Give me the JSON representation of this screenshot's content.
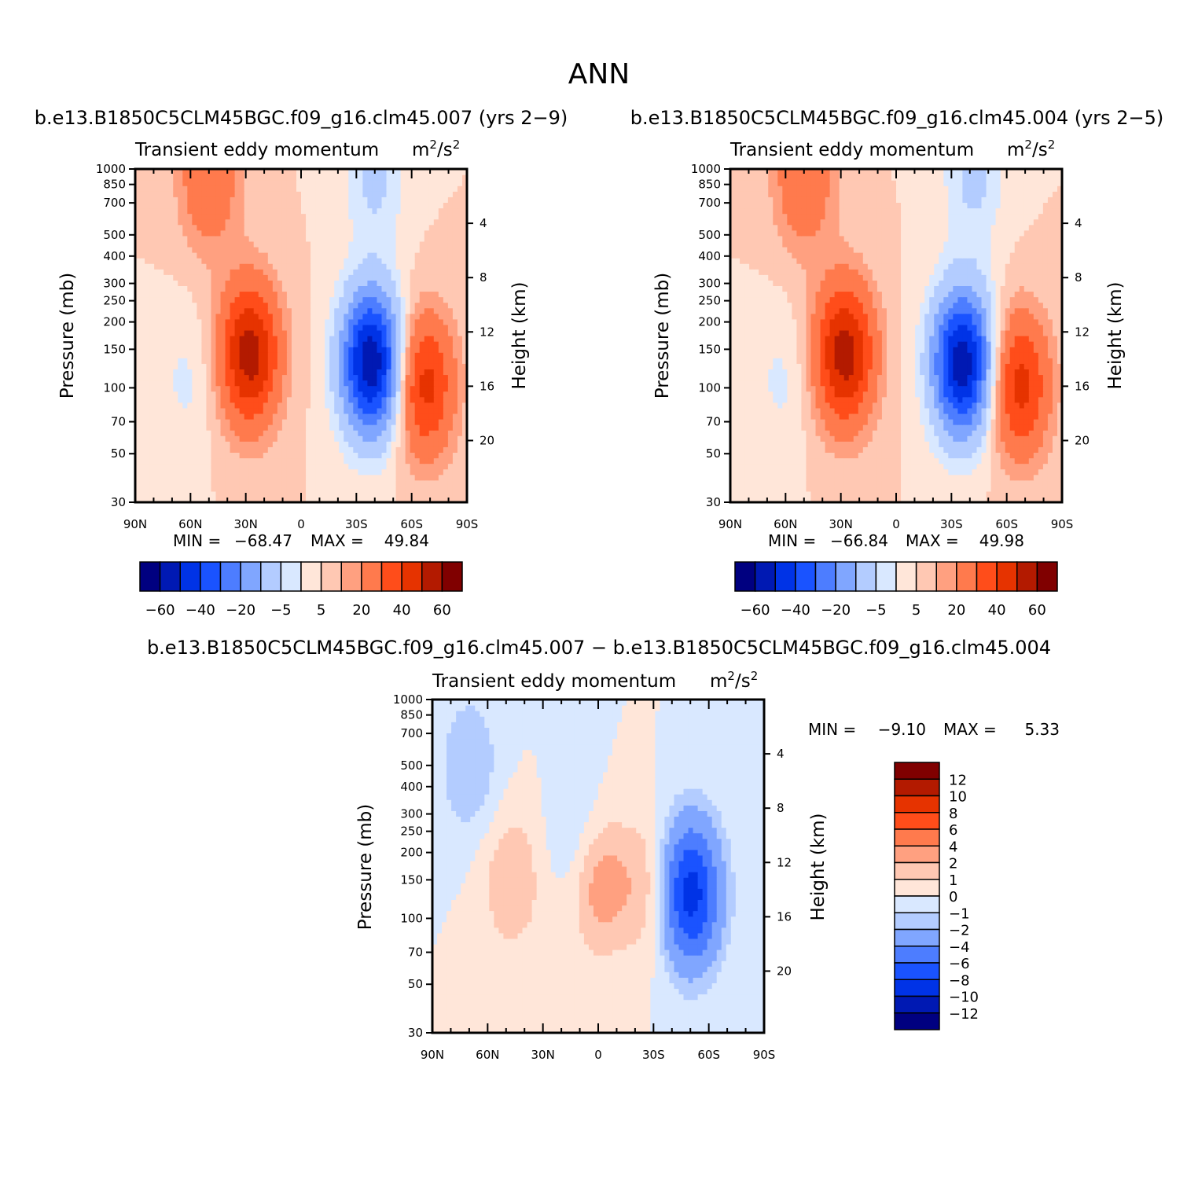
{
  "title": "ANN",
  "colors": {
    "full": [
      "#000080",
      "#0019b3",
      "#0033e6",
      "#1a53ff",
      "#4d7dff",
      "#80a6ff",
      "#b3ccff",
      "#d9e8ff",
      "#ffe6d9",
      "#ffc8b3",
      "#ffa080",
      "#ff7a4d",
      "#ff4d1a",
      "#e63300",
      "#b31a00",
      "#800000"
    ],
    "diff": [
      "#000080",
      "#0019b3",
      "#0033e6",
      "#1a53ff",
      "#4d7dff",
      "#80a6ff",
      "#b3ccff",
      "#d9e8ff",
      "#ffe6d9",
      "#ffc8b3",
      "#ffa080",
      "#ff7a4d",
      "#ff4d1a",
      "#e63300",
      "#b31a00",
      "#800000"
    ]
  },
  "panels": [
    {
      "case": "b.e13.B1850C5CLM45BGC.f09_g16.clm45.007 (yrs 2−9)",
      "title": "Transient eddy momentum",
      "units_base": "m",
      "units_sup1": "2",
      "units_mid": "/s",
      "units_sup2": "2",
      "ylabel": "Pressure (mb)",
      "y2label": "Height (km)",
      "min_label": "MIN =",
      "min_value": "−68.47",
      "max_label": "MAX =",
      "max_value": "49.84"
    },
    {
      "case": "b.e13.B1850C5CLM45BGC.f09_g16.clm45.004 (yrs 2−5)",
      "title": "Transient eddy momentum",
      "units_base": "m",
      "units_sup1": "2",
      "units_mid": "/s",
      "units_sup2": "2",
      "ylabel": "Pressure (mb)",
      "y2label": "Height (km)",
      "min_label": "MIN =",
      "min_value": "−66.84",
      "max_label": "MAX =",
      "max_value": "49.98"
    },
    {
      "case": "b.e13.B1850C5CLM45BGC.f09_g16.clm45.007 − b.e13.B1850C5CLM45BGC.f09_g16.clm45.004",
      "title": "Transient eddy momentum",
      "units_base": "m",
      "units_sup1": "2",
      "units_mid": "/s",
      "units_sup2": "2",
      "ylabel": "Pressure (mb)",
      "y2label": "Height (km)",
      "min_label": "MIN =",
      "min_value": "−9.10",
      "max_label": "MAX =",
      "max_value": "5.33"
    }
  ],
  "chart_data": {
    "type": "heatmap",
    "x_ticks": [
      "90N",
      "60N",
      "30N",
      "0",
      "30S",
      "60S",
      "90S"
    ],
    "x_range": [
      90,
      -90
    ],
    "y_ticks": [
      "30",
      "50",
      "70",
      "100",
      "150",
      "200",
      "250",
      "300",
      "400",
      "500",
      "700",
      "850",
      "1000"
    ],
    "y_tick_values": [
      30,
      50,
      70,
      100,
      150,
      200,
      250,
      300,
      400,
      500,
      700,
      850,
      1000
    ],
    "y_scale": "log",
    "y2_ticks": [
      "20",
      "16",
      "12",
      "8",
      "4"
    ],
    "y2_tick_values": [
      20,
      16,
      12,
      8,
      4
    ],
    "full_colorbar_labels": [
      "−60",
      "−40",
      "−20",
      "−5",
      "5",
      "20",
      "40",
      "60"
    ],
    "diff_colorbar_labels": [
      "12",
      "10",
      "8",
      "6",
      "4",
      "2",
      "1",
      "0",
      "−1",
      "−2",
      "−4",
      "−6",
      "−8",
      "−10",
      "−12"
    ],
    "full_levels": [
      -70,
      -60,
      -50,
      -40,
      -30,
      -20,
      -10,
      -5,
      0,
      5,
      10,
      20,
      30,
      40,
      50,
      60
    ],
    "diff_levels": [
      -12,
      -10,
      -8,
      -6,
      -4,
      -2,
      -1,
      0,
      1,
      2,
      4,
      6,
      8,
      10,
      12
    ],
    "features": {
      "panel1": [
        {
          "lat": 28,
          "p": 210,
          "value": 45
        },
        {
          "lat": -38,
          "p": 230,
          "value": -68.47
        },
        {
          "lat": -67,
          "p": 290,
          "value": 34
        },
        {
          "lat": 62,
          "p": 280,
          "value": -6
        },
        {
          "lat": 50,
          "p": 32,
          "value": 20
        },
        {
          "lat": -40,
          "p": 32,
          "value": -12
        }
      ],
      "panel2": [
        {
          "lat": 28,
          "p": 210,
          "value": 45
        },
        {
          "lat": -36,
          "p": 230,
          "value": -66.84
        },
        {
          "lat": -67,
          "p": 290,
          "value": 34
        },
        {
          "lat": 62,
          "p": 280,
          "value": -6
        },
        {
          "lat": 50,
          "p": 32,
          "value": 20
        },
        {
          "lat": -42,
          "p": 32,
          "value": -12
        }
      ],
      "diff": [
        {
          "lat": -50,
          "p": 230,
          "value": -9.1
        },
        {
          "lat": 0,
          "p": 200,
          "value": 3
        },
        {
          "lat": 47,
          "p": 200,
          "value": 2
        },
        {
          "lat": -28,
          "p": 220,
          "value": 2
        },
        {
          "lat": 70,
          "p": 60,
          "value": -2
        },
        {
          "lat": 10,
          "p": 130,
          "value": -1.5
        }
      ]
    }
  }
}
